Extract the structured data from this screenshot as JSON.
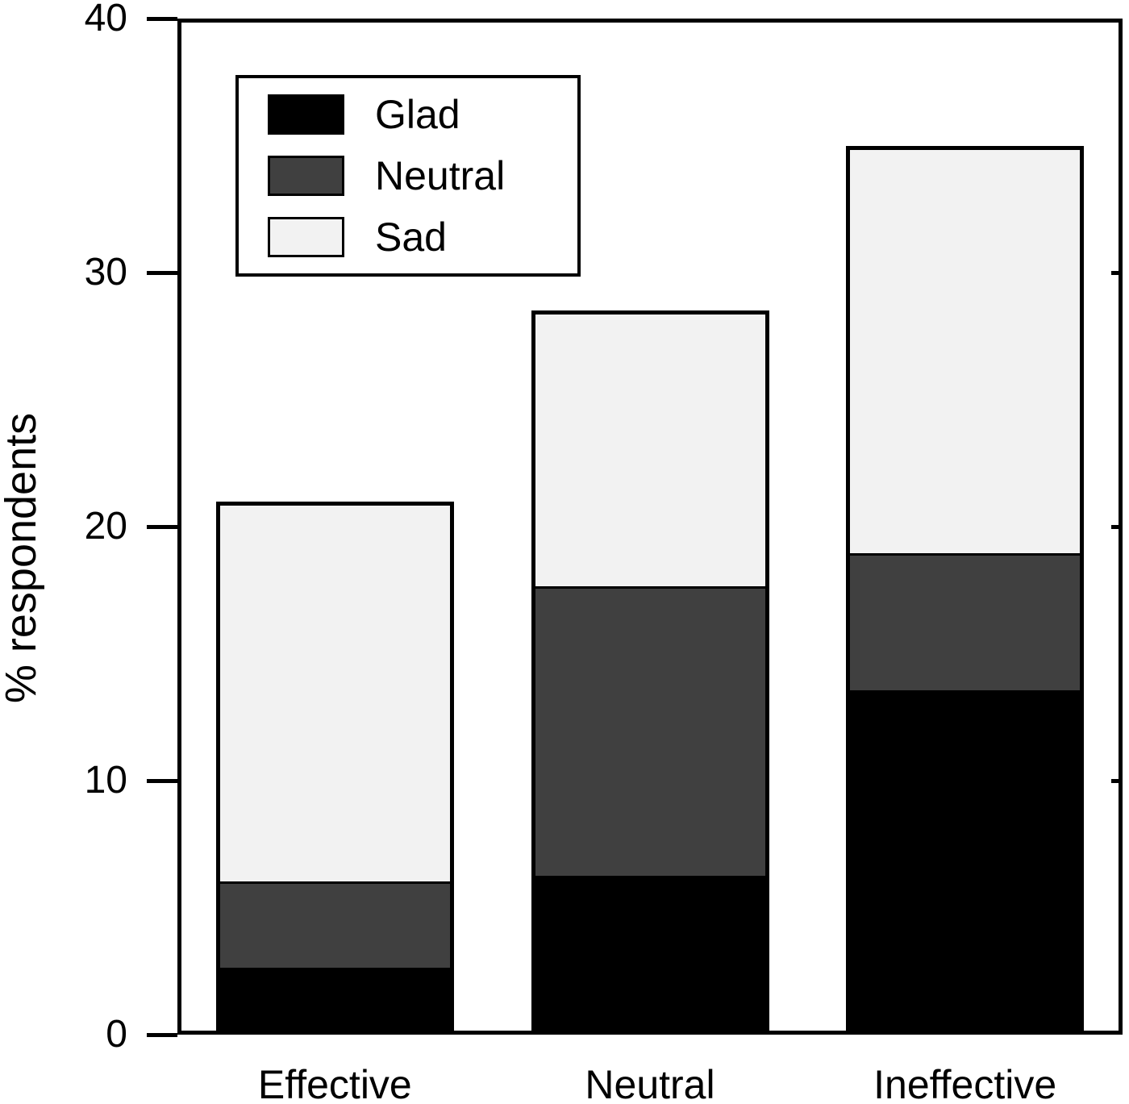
{
  "figure": {
    "background": "#ffffff",
    "axis_color": "#000000"
  },
  "chart_data": {
    "type": "bar",
    "stacked": true,
    "categories": [
      "Effective",
      "Neutral",
      "Ineffective"
    ],
    "series": [
      {
        "name": "Glad",
        "color": "#000000",
        "values": [
          2.6,
          6.2,
          13.5
        ]
      },
      {
        "name": "Neutral",
        "color": "#404040",
        "values": [
          3.4,
          11.4,
          5.4
        ]
      },
      {
        "name": "Sad",
        "color": "#f2f2f2",
        "values": [
          15.0,
          10.9,
          16.1
        ]
      }
    ],
    "stack_totals": [
      21.0,
      28.5,
      35.0
    ],
    "ylabel": "% respondents",
    "ylim": [
      0,
      40
    ],
    "yticks": [
      0,
      10,
      20,
      30,
      40
    ],
    "grid": false,
    "legend": {
      "position": "upper-left",
      "entries": [
        "Glad",
        "Neutral",
        "Sad"
      ]
    }
  }
}
